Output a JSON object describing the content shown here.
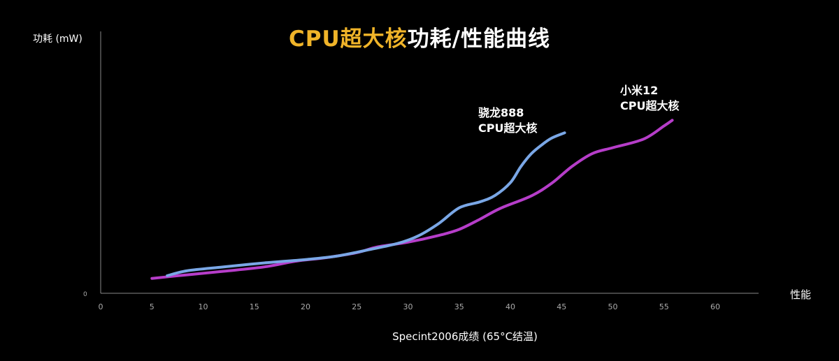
{
  "title": {
    "highlight": "CPU超大核",
    "rest": "功耗/性能曲线",
    "highlight_color": "#f0b429"
  },
  "ylabel": "功耗 (mW)",
  "xend_label": "性能",
  "xlabel": "Specint2006成绩 (65°C结温)",
  "series_labels": [
    {
      "line1": "骁龙888",
      "line2": "CPU超大核"
    },
    {
      "line1": "小米12",
      "line2": "CPU超大核"
    }
  ],
  "chart_data": {
    "type": "line",
    "title": "CPU超大核功耗/性能曲线",
    "xlabel": "Specint2006成绩 (65°C结温)",
    "ylabel": "功耗 (mW)",
    "xlim": [
      0,
      64
    ],
    "ylim": [
      0,
      100
    ],
    "x_ticks": [
      0,
      5,
      10,
      15,
      20,
      25,
      30,
      35,
      40,
      45,
      50,
      55,
      60
    ],
    "y_ticks": [
      0
    ],
    "grid": false,
    "series": [
      {
        "name": "骁龙888 CPU超大核",
        "color": "#7aa7e6",
        "points": [
          [
            6.5,
            8.4
          ],
          [
            8.5,
            10.8
          ],
          [
            12,
            12.6
          ],
          [
            16,
            14.5
          ],
          [
            20,
            16.1
          ],
          [
            23,
            17.7
          ],
          [
            26,
            20.6
          ],
          [
            29,
            23.8
          ],
          [
            31,
            27.4
          ],
          [
            33,
            33.3
          ],
          [
            35,
            40.8
          ],
          [
            37,
            43.6
          ],
          [
            38.5,
            46.7
          ],
          [
            40,
            52.8
          ],
          [
            41,
            60.3
          ],
          [
            42,
            66.4
          ],
          [
            43,
            70.6
          ],
          [
            44,
            74
          ],
          [
            45.3,
            76.6
          ]
        ]
      },
      {
        "name": "小米12 CPU超大核",
        "color": "#b63dc9",
        "points": [
          [
            5,
            7.1
          ],
          [
            8,
            8.6
          ],
          [
            12,
            10.5
          ],
          [
            16,
            12.6
          ],
          [
            19,
            15.3
          ],
          [
            22,
            17
          ],
          [
            25,
            19.4
          ],
          [
            27,
            22.1
          ],
          [
            30,
            24.4
          ],
          [
            33,
            27.6
          ],
          [
            35,
            30.5
          ],
          [
            37,
            35.3
          ],
          [
            39,
            40.5
          ],
          [
            42,
            46.4
          ],
          [
            44,
            52.4
          ],
          [
            46,
            60.5
          ],
          [
            48,
            66.7
          ],
          [
            50,
            69.5
          ],
          [
            53,
            73.6
          ],
          [
            55,
            79.9
          ],
          [
            55.8,
            82.6
          ]
        ]
      }
    ]
  }
}
